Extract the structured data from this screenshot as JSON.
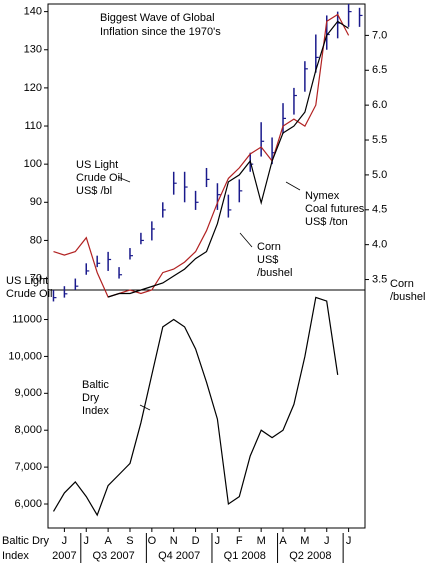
{
  "chart_data": [
    {
      "type": "line",
      "title": [
        "Biggest Wave of Global",
        "Inflation since the 1970's"
      ],
      "ylim": [
        67,
        142
      ],
      "yticks": [
        70,
        80,
        90,
        100,
        110,
        120,
        130,
        140
      ],
      "y2lim": [
        3.35,
        7.45
      ],
      "y2ticks": [
        {
          "value": 3.5,
          "label": "3.5"
        },
        {
          "value": 4,
          "label": "4.0"
        },
        {
          "value": 4.5,
          "label": "4.5"
        },
        {
          "value": 5,
          "label": "5.0"
        },
        {
          "value": 5.5,
          "label": "5.5"
        },
        {
          "value": 6,
          "label": "6.0"
        },
        {
          "value": 6.5,
          "label": "6.5"
        },
        {
          "value": 7,
          "label": "7.0"
        }
      ],
      "series": [
        {
          "color": "#1a1a8c",
          "style": "ohlc",
          "values": [
            65,
            66,
            68,
            72,
            74,
            75,
            71,
            76,
            80,
            83,
            88,
            95,
            94,
            90,
            96,
            92,
            88,
            93,
            100,
            106,
            103,
            112,
            118,
            125,
            128,
            134,
            137,
            140,
            139
          ],
          "high": [
            67,
            68,
            70,
            74,
            76,
            77,
            73,
            78,
            82,
            85,
            90,
            98,
            98,
            93,
            99,
            95,
            92,
            96,
            103,
            111,
            107,
            116,
            120,
            127,
            134,
            139,
            140,
            142,
            141
          ],
          "low": [
            64,
            65,
            67,
            71,
            73,
            72,
            70,
            75,
            79,
            80,
            86,
            92,
            90,
            88,
            94,
            88,
            86,
            90,
            98,
            102,
            100,
            108,
            113,
            119,
            124,
            130,
            133,
            136,
            136
          ]
        },
        {
          "color": "#b22222",
          "axis": "y2",
          "values": [
            3.9,
            3.85,
            3.9,
            4.1,
            3.6,
            3.25,
            3.3,
            3.35,
            3.3,
            3.35,
            3.6,
            3.65,
            3.75,
            3.9,
            4.2,
            4.6,
            4.95,
            5.1,
            5.3,
            5.4,
            5.2,
            5.7,
            5.8,
            5.7,
            6.0,
            7.2,
            7.3,
            7.0,
            null
          ]
        },
        {
          "color": "#000000",
          "axis": "y2",
          "values": [
            null,
            null,
            null,
            null,
            null,
            3.25,
            3.3,
            3.3,
            3.35,
            3.4,
            3.45,
            3.55,
            3.65,
            3.8,
            3.9,
            4.3,
            4.9,
            5.0,
            5.2,
            4.6,
            5.2,
            5.6,
            5.7,
            5.9,
            6.5,
            7.0,
            7.2,
            7.1,
            null
          ]
        }
      ],
      "annotations": [
        {
          "lines": [
            "US Light",
            "Crude Oil",
            "US$ /bl"
          ],
          "color": "#1a1a8c"
        },
        {
          "lines": [
            "Nymex",
            "Coal futures",
            "US$ /ton"
          ],
          "color": "#000000"
        },
        {
          "lines": [
            "Corn",
            "US$",
            "/bushel"
          ],
          "color": "#b22222"
        },
        {
          "lines": [
            "US Light",
            "Crude Oil"
          ],
          "color": "#1a1a8c"
        },
        {
          "lines": [
            "Corn",
            "/bushel"
          ],
          "color": "#b22222"
        }
      ]
    },
    {
      "type": "line",
      "categories": [
        null,
        "J",
        null,
        "J",
        null,
        "A",
        null,
        "S",
        null,
        "O",
        null,
        "N",
        null,
        "D",
        null,
        "J",
        null,
        "F",
        null,
        "M",
        null,
        "A",
        null,
        "M",
        null,
        "J",
        null,
        "J",
        null
      ],
      "periods": [
        "2007",
        "Q3 2007",
        "Q4 2007",
        "Q1 2008",
        "Q2 2008"
      ],
      "axis_label": [
        "Baltic Dry",
        "Index"
      ],
      "ylim": [
        5350,
        11800
      ],
      "yticks": [
        {
          "value": 6000,
          "label": "6,000"
        },
        {
          "value": 7000,
          "label": "7,000"
        },
        {
          "value": 8000,
          "label": "8,000"
        },
        {
          "value": 9000,
          "label": "9,000"
        },
        {
          "value": 10000,
          "label": "10,000"
        },
        {
          "value": 11000,
          "label": "11000"
        }
      ],
      "series": [
        {
          "color": "#000000",
          "values": [
            5800,
            6300,
            6600,
            6200,
            5700,
            6500,
            6800,
            7100,
            8200,
            9500,
            10800,
            11000,
            10800,
            10200,
            9300,
            8300,
            6000,
            6200,
            7300,
            8000,
            7800,
            8000,
            8700,
            10000,
            11600,
            11500,
            9500,
            null,
            null
          ]
        }
      ],
      "annotations": [
        {
          "lines": [
            "Baltic",
            "Dry",
            "Index"
          ],
          "color": "#000000"
        }
      ]
    }
  ]
}
